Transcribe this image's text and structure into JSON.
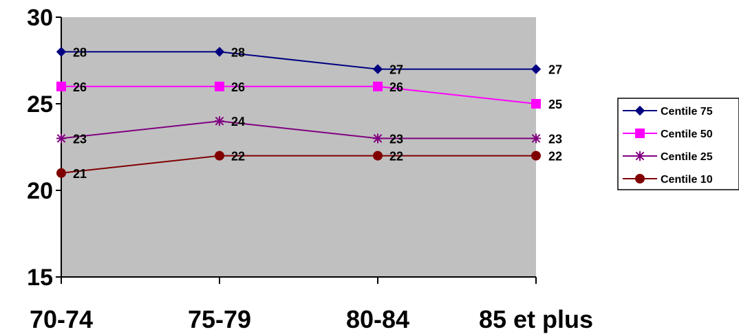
{
  "chart_data": {
    "type": "line",
    "categories": [
      "70-74",
      "75-79",
      "80-84",
      "85 et plus"
    ],
    "ylim": [
      15,
      30
    ],
    "yticks": [
      "15",
      "20",
      "25",
      "30"
    ],
    "grid": false,
    "plot_background": "#c0c0c0",
    "legend_position": "right",
    "data_labels": true,
    "series": [
      {
        "name": "Centile 75",
        "values": [
          28,
          28,
          27,
          27
        ],
        "labels": [
          "28",
          "28",
          "27",
          "27"
        ],
        "color": "#000080",
        "marker": "diamond"
      },
      {
        "name": "Centile 50",
        "values": [
          26,
          26,
          26,
          25
        ],
        "labels": [
          "26",
          "26",
          "26",
          "25"
        ],
        "color": "#ff00ff",
        "marker": "square"
      },
      {
        "name": "Centile 25",
        "values": [
          23,
          24,
          23,
          23
        ],
        "labels": [
          "23",
          "24",
          "23",
          "23"
        ],
        "color": "#800080",
        "marker": "star"
      },
      {
        "name": "Centile 10",
        "values": [
          21,
          22,
          22,
          22
        ],
        "labels": [
          "21",
          "22",
          "22",
          "22"
        ],
        "color": "#800000",
        "marker": "circle"
      }
    ]
  }
}
